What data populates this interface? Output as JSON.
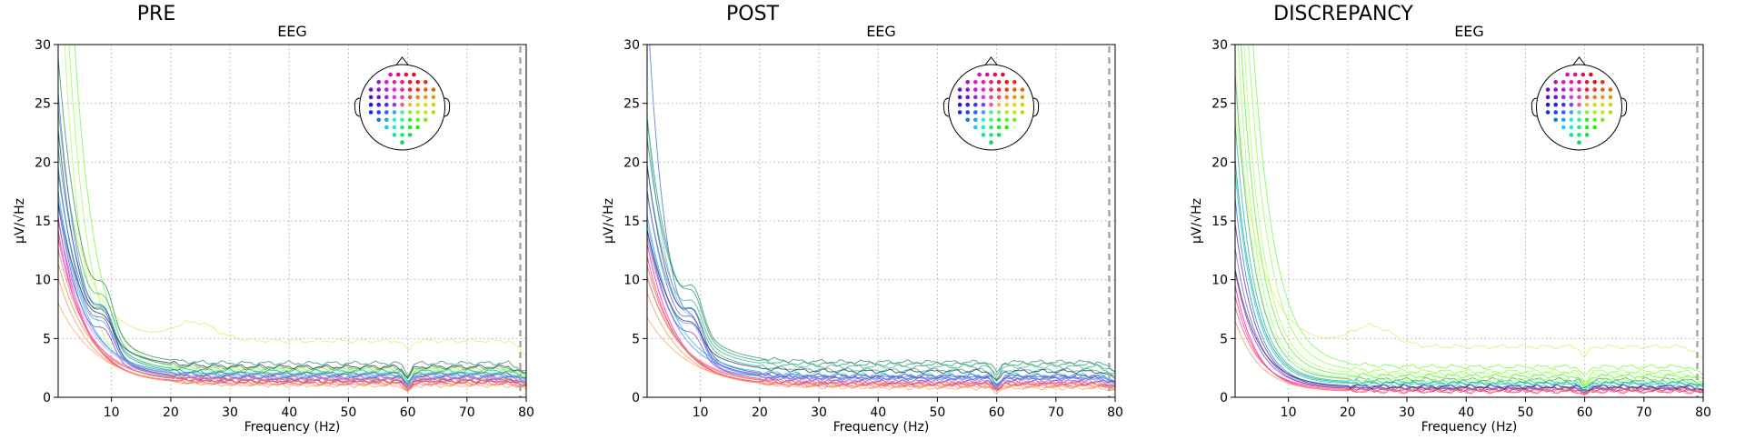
{
  "chart_data": [
    {
      "type": "line",
      "panel_title": "PRE",
      "title": "EEG",
      "xlabel": "Frequency (Hz)",
      "ylabel": "µV/√Hz",
      "xlim": [
        1,
        80
      ],
      "ylim": [
        0,
        30
      ],
      "xticks": [
        10,
        20,
        30,
        40,
        50,
        60,
        70,
        80
      ],
      "yticks": [
        0,
        5,
        10,
        15,
        20,
        25,
        30
      ],
      "grid": true,
      "cutoff_hz": 79,
      "inset": "head-topomap-top-right",
      "series": [
        {
          "color": "#66ff33",
          "a": 60.0,
          "k": 0.28,
          "base": 2.4
        },
        {
          "color": "#8cff44",
          "a": 48.0,
          "k": 0.3,
          "base": 2.3
        },
        {
          "color": "#aaff55",
          "a": 40.0,
          "k": 0.33,
          "base": 2.1
        },
        {
          "color": "#d9f060",
          "a": 18.0,
          "k": 0.22,
          "base": 4.8,
          "bump": [
            24,
            1.5,
            5
          ]
        },
        {
          "color": "#2e8b57",
          "a": 26.0,
          "k": 0.24,
          "base": 2.9,
          "alpha": 8.0
        },
        {
          "color": "#3cb371",
          "a": 22.0,
          "k": 0.23,
          "base": 2.5,
          "alpha": 7.0
        },
        {
          "color": "#20b2aa",
          "a": 19.0,
          "k": 0.22,
          "base": 2.2,
          "alpha": 6.0
        },
        {
          "color": "#1b9e77",
          "a": 17.0,
          "k": 0.21,
          "base": 2.0,
          "alpha": 6.5
        },
        {
          "color": "#4169e1",
          "a": 24.0,
          "k": 0.26,
          "base": 1.9,
          "alpha": 7.5
        },
        {
          "color": "#3a3aa0",
          "a": 21.0,
          "k": 0.24,
          "base": 1.7,
          "alpha": 7.0
        },
        {
          "color": "#6a5acd",
          "a": 18.0,
          "k": 0.23,
          "base": 1.6,
          "alpha": 6.0
        },
        {
          "color": "#5b8ff9",
          "a": 16.0,
          "k": 0.21,
          "base": 1.5,
          "alpha": 5.0
        },
        {
          "color": "#8a2be2",
          "a": 15.0,
          "k": 0.22,
          "base": 1.4,
          "alpha": 5.0
        },
        {
          "color": "#2f2f4f",
          "a": 14.0,
          "k": 0.2,
          "base": 2.6,
          "alpha": 4.0
        },
        {
          "color": "#ff1493",
          "a": 14.0,
          "k": 0.23,
          "base": 1.3
        },
        {
          "color": "#ff3366",
          "a": 13.0,
          "k": 0.22,
          "base": 1.2
        },
        {
          "color": "#e75480",
          "a": 12.0,
          "k": 0.21,
          "base": 1.5
        },
        {
          "color": "#ff69b4",
          "a": 11.0,
          "k": 0.2,
          "base": 1.6
        },
        {
          "color": "#ff8c55",
          "a": 9.0,
          "k": 0.18,
          "base": 1.1
        },
        {
          "color": "#ffa060",
          "a": 7.0,
          "k": 0.15,
          "base": 1.0
        },
        {
          "color": "#cc88ff",
          "a": 12.0,
          "k": 0.2,
          "base": 1.8
        },
        {
          "color": "#7b68ee",
          "a": 13.0,
          "k": 0.21,
          "base": 2.0
        },
        {
          "color": "#00ced1",
          "a": 15.0,
          "k": 0.22,
          "base": 1.9
        },
        {
          "color": "#c8a020",
          "a": 10.0,
          "k": 0.19,
          "base": 1.4
        }
      ]
    },
    {
      "type": "line",
      "panel_title": "POST",
      "title": "EEG",
      "xlabel": "Frequency (Hz)",
      "ylabel": "µV/√Hz",
      "xlim": [
        1,
        80
      ],
      "ylim": [
        0,
        30
      ],
      "xticks": [
        10,
        20,
        30,
        40,
        50,
        60,
        70,
        80
      ],
      "yticks": [
        0,
        5,
        10,
        15,
        20,
        25,
        30
      ],
      "grid": true,
      "cutoff_hz": 79,
      "inset": "head-topomap-top-right",
      "series": [
        {
          "color": "#4169e1",
          "a": 32.0,
          "k": 0.3,
          "base": 1.7,
          "alpha": 6.0
        },
        {
          "color": "#7fb3e6",
          "a": 22.0,
          "k": 0.24,
          "base": 1.6,
          "alpha": 5.0
        },
        {
          "color": "#1b9e77",
          "a": 21.0,
          "k": 0.22,
          "base": 2.8,
          "alpha": 7.0
        },
        {
          "color": "#2e8b57",
          "a": 19.0,
          "k": 0.21,
          "base": 3.0,
          "alpha": 8.0
        },
        {
          "color": "#3cb371",
          "a": 17.0,
          "k": 0.21,
          "base": 2.6,
          "alpha": 6.5
        },
        {
          "color": "#20b2aa",
          "a": 15.0,
          "k": 0.2,
          "base": 2.3,
          "alpha": 6.0
        },
        {
          "color": "#3a3aa0",
          "a": 18.0,
          "k": 0.22,
          "base": 1.8,
          "alpha": 7.0
        },
        {
          "color": "#6a5acd",
          "a": 16.0,
          "k": 0.21,
          "base": 1.6,
          "alpha": 6.0
        },
        {
          "color": "#5b8ff9",
          "a": 14.0,
          "k": 0.2,
          "base": 1.5,
          "alpha": 5.0
        },
        {
          "color": "#8a2be2",
          "a": 13.0,
          "k": 0.2,
          "base": 1.3,
          "alpha": 4.0
        },
        {
          "color": "#ff1493",
          "a": 12.0,
          "k": 0.21,
          "base": 1.1
        },
        {
          "color": "#ff3366",
          "a": 11.0,
          "k": 0.2,
          "base": 1.0
        },
        {
          "color": "#e75480",
          "a": 10.0,
          "k": 0.19,
          "base": 1.2
        },
        {
          "color": "#ff69b4",
          "a": 9.0,
          "k": 0.18,
          "base": 1.3
        },
        {
          "color": "#ff8c55",
          "a": 8.0,
          "k": 0.17,
          "base": 0.9
        },
        {
          "color": "#ffa060",
          "a": 6.0,
          "k": 0.14,
          "base": 0.8
        },
        {
          "color": "#c8a020",
          "a": 9.0,
          "k": 0.18,
          "base": 1.2
        },
        {
          "color": "#00ced1",
          "a": 13.0,
          "k": 0.2,
          "base": 1.9
        },
        {
          "color": "#7b68ee",
          "a": 12.0,
          "k": 0.2,
          "base": 1.7
        },
        {
          "color": "#2f2f4f",
          "a": 12.0,
          "k": 0.19,
          "base": 2.2,
          "alpha": 4.0
        }
      ]
    },
    {
      "type": "line",
      "panel_title": "DISCREPANCY",
      "title": "EEG",
      "xlabel": "Frequency (Hz)",
      "ylabel": "µV/√Hz",
      "xlim": [
        1,
        80
      ],
      "ylim": [
        0,
        30
      ],
      "xticks": [
        10,
        20,
        30,
        40,
        50,
        60,
        70,
        80
      ],
      "yticks": [
        0,
        5,
        10,
        15,
        20,
        25,
        30
      ],
      "grid": true,
      "cutoff_hz": 79,
      "inset": "head-topomap-top-right",
      "series": [
        {
          "color": "#66ff33",
          "a": 62.0,
          "k": 0.27,
          "base": 2.6
        },
        {
          "color": "#8cff44",
          "a": 52.0,
          "k": 0.28,
          "base": 2.2
        },
        {
          "color": "#aaff55",
          "a": 44.0,
          "k": 0.3,
          "base": 2.0
        },
        {
          "color": "#55ee33",
          "a": 38.0,
          "k": 0.3,
          "base": 1.8
        },
        {
          "color": "#99ff66",
          "a": 33.0,
          "k": 0.31,
          "base": 1.6
        },
        {
          "color": "#d9f060",
          "a": 20.0,
          "k": 0.23,
          "base": 4.3,
          "bump": [
            24,
            1.7,
            5
          ]
        },
        {
          "color": "#3cb371",
          "a": 26.0,
          "k": 0.3,
          "base": 1.5
        },
        {
          "color": "#20b2aa",
          "a": 22.0,
          "k": 0.3,
          "base": 1.3
        },
        {
          "color": "#1b9e77",
          "a": 19.0,
          "k": 0.29,
          "base": 1.2
        },
        {
          "color": "#4169e1",
          "a": 16.0,
          "k": 0.29,
          "base": 0.9
        },
        {
          "color": "#3a3aa0",
          "a": 14.0,
          "k": 0.28,
          "base": 0.8
        },
        {
          "color": "#6a5acd",
          "a": 12.0,
          "k": 0.27,
          "base": 0.7
        },
        {
          "color": "#8a2be2",
          "a": 10.0,
          "k": 0.26,
          "base": 0.7
        },
        {
          "color": "#ff1493",
          "a": 9.0,
          "k": 0.27,
          "base": 0.5
        },
        {
          "color": "#ff3366",
          "a": 8.0,
          "k": 0.26,
          "base": 0.6
        },
        {
          "color": "#e75480",
          "a": 7.0,
          "k": 0.25,
          "base": 0.7
        },
        {
          "color": "#ff8c55",
          "a": 6.0,
          "k": 0.24,
          "base": 0.5
        },
        {
          "color": "#2f2f4f",
          "a": 10.0,
          "k": 0.25,
          "base": 0.9
        },
        {
          "color": "#00ced1",
          "a": 18.0,
          "k": 0.29,
          "base": 1.1
        },
        {
          "color": "#c8ff88",
          "a": 28.0,
          "k": 0.3,
          "base": 1.4
        }
      ]
    }
  ]
}
